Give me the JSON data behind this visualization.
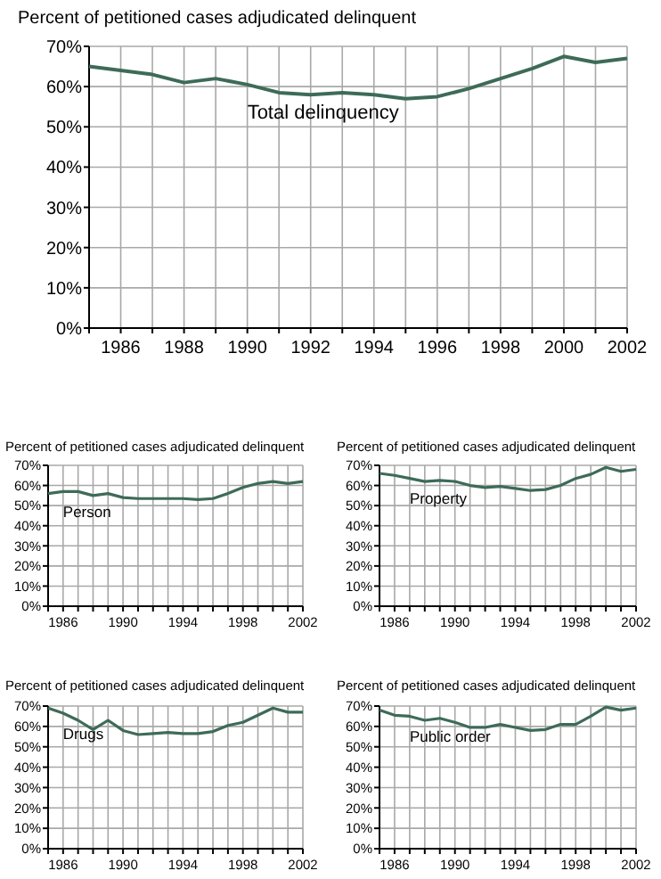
{
  "chart_data": [
    {
      "type": "line",
      "title": "Percent of petitioned cases adjudicated delinquent",
      "x": [
        1985,
        1986,
        1987,
        1988,
        1989,
        1990,
        1991,
        1992,
        1993,
        1994,
        1995,
        1996,
        1997,
        1998,
        1999,
        2000,
        2001,
        2002
      ],
      "series": [
        {
          "name": "Total delinquency",
          "color": "#3d6b58",
          "values": [
            65,
            64,
            63,
            61,
            62,
            60.5,
            58.5,
            58,
            58.5,
            58,
            57,
            57.5,
            59.5,
            62,
            64.5,
            67.5,
            66,
            67
          ]
        }
      ],
      "xlim": [
        1985,
        2002
      ],
      "xticks": [
        {
          "value": 1985,
          "label": null
        },
        1986,
        {
          "value": 1987,
          "label": null
        },
        1988,
        {
          "value": 1989,
          "label": null
        },
        1990,
        {
          "value": 1991,
          "label": null
        },
        1992,
        {
          "value": 1993,
          "label": null
        },
        1994,
        {
          "value": 1995,
          "label": null
        },
        1996,
        {
          "value": 1997,
          "label": null
        },
        1998,
        {
          "value": 1999,
          "label": null
        },
        2000,
        {
          "value": 2001,
          "label": null
        },
        2002
      ],
      "ylim": [
        0,
        70
      ],
      "yticks": [
        {
          "value": 0,
          "label": "0%"
        },
        {
          "value": 10,
          "label": "10%"
        },
        {
          "value": 20,
          "label": "20%"
        },
        {
          "value": 30,
          "label": "30%"
        },
        {
          "value": 40,
          "label": "40%"
        },
        {
          "value": 50,
          "label": "50%"
        },
        {
          "value": 60,
          "label": "60%"
        },
        {
          "value": 70,
          "label": "70%"
        }
      ],
      "grid": true
    },
    {
      "type": "line",
      "title": "Percent of petitioned cases adjudicated delinquent",
      "x": [
        1985,
        1986,
        1987,
        1988,
        1989,
        1990,
        1991,
        1992,
        1993,
        1994,
        1995,
        1996,
        1997,
        1998,
        1999,
        2000,
        2001,
        2002
      ],
      "series": [
        {
          "name": "Person",
          "color": "#3d6b58",
          "values": [
            56,
            57,
            57,
            55,
            56,
            54,
            53.5,
            53.5,
            53.5,
            53.5,
            53,
            53.5,
            56,
            59,
            61,
            62,
            61,
            62
          ]
        }
      ],
      "xlim": [
        1985,
        2002
      ],
      "xticks": [
        {
          "value": 1985,
          "label": null
        },
        1986,
        {
          "value": 1987,
          "label": null
        },
        {
          "value": 1988,
          "label": null
        },
        {
          "value": 1989,
          "label": null
        },
        1990,
        {
          "value": 1991,
          "label": null
        },
        {
          "value": 1992,
          "label": null
        },
        {
          "value": 1993,
          "label": null
        },
        1994,
        {
          "value": 1995,
          "label": null
        },
        {
          "value": 1996,
          "label": null
        },
        {
          "value": 1997,
          "label": null
        },
        1998,
        {
          "value": 1999,
          "label": null
        },
        {
          "value": 2000,
          "label": null
        },
        {
          "value": 2001,
          "label": null
        },
        2002
      ],
      "ylim": [
        0,
        70
      ],
      "yticks": [
        {
          "value": 0,
          "label": "0%"
        },
        {
          "value": 10,
          "label": "10%"
        },
        {
          "value": 20,
          "label": "20%"
        },
        {
          "value": 30,
          "label": "30%"
        },
        {
          "value": 40,
          "label": "40%"
        },
        {
          "value": 50,
          "label": "50%"
        },
        {
          "value": 60,
          "label": "60%"
        },
        {
          "value": 70,
          "label": "70%"
        }
      ],
      "grid": true
    },
    {
      "type": "line",
      "title": "Percent of petitioned cases adjudicated delinquent",
      "x": [
        1985,
        1986,
        1987,
        1988,
        1989,
        1990,
        1991,
        1992,
        1993,
        1994,
        1995,
        1996,
        1997,
        1998,
        1999,
        2000,
        2001,
        2002
      ],
      "series": [
        {
          "name": "Property",
          "color": "#3d6b58",
          "values": [
            66,
            65,
            63.5,
            62,
            62.5,
            62,
            60,
            59,
            59.5,
            58.5,
            57.5,
            58,
            60,
            63.5,
            65.5,
            69,
            67,
            68
          ]
        }
      ],
      "xlim": [
        1985,
        2002
      ],
      "xticks": [
        {
          "value": 1985,
          "label": null
        },
        1986,
        {
          "value": 1987,
          "label": null
        },
        {
          "value": 1988,
          "label": null
        },
        {
          "value": 1989,
          "label": null
        },
        1990,
        {
          "value": 1991,
          "label": null
        },
        {
          "value": 1992,
          "label": null
        },
        {
          "value": 1993,
          "label": null
        },
        1994,
        {
          "value": 1995,
          "label": null
        },
        {
          "value": 1996,
          "label": null
        },
        {
          "value": 1997,
          "label": null
        },
        1998,
        {
          "value": 1999,
          "label": null
        },
        {
          "value": 2000,
          "label": null
        },
        {
          "value": 2001,
          "label": null
        },
        2002
      ],
      "ylim": [
        0,
        70
      ],
      "yticks": [
        {
          "value": 0,
          "label": "0%"
        },
        {
          "value": 10,
          "label": "10%"
        },
        {
          "value": 20,
          "label": "20%"
        },
        {
          "value": 30,
          "label": "30%"
        },
        {
          "value": 40,
          "label": "40%"
        },
        {
          "value": 50,
          "label": "50%"
        },
        {
          "value": 60,
          "label": "60%"
        },
        {
          "value": 70,
          "label": "70%"
        }
      ],
      "grid": true
    },
    {
      "type": "line",
      "title": "Percent of petitioned cases adjudicated delinquent",
      "x": [
        1985,
        1986,
        1987,
        1988,
        1989,
        1990,
        1991,
        1992,
        1993,
        1994,
        1995,
        1996,
        1997,
        1998,
        1999,
        2000,
        2001,
        2002
      ],
      "series": [
        {
          "name": "Drugs",
          "color": "#3d6b58",
          "values": [
            69,
            66.5,
            63,
            58.5,
            63,
            58,
            56,
            56.5,
            57,
            56.5,
            56.5,
            57.5,
            60.5,
            62,
            65.5,
            69,
            67,
            67
          ]
        }
      ],
      "xlim": [
        1985,
        2002
      ],
      "xticks": [
        {
          "value": 1985,
          "label": null
        },
        1986,
        {
          "value": 1987,
          "label": null
        },
        {
          "value": 1988,
          "label": null
        },
        {
          "value": 1989,
          "label": null
        },
        1990,
        {
          "value": 1991,
          "label": null
        },
        {
          "value": 1992,
          "label": null
        },
        {
          "value": 1993,
          "label": null
        },
        1994,
        {
          "value": 1995,
          "label": null
        },
        {
          "value": 1996,
          "label": null
        },
        {
          "value": 1997,
          "label": null
        },
        1998,
        {
          "value": 1999,
          "label": null
        },
        {
          "value": 2000,
          "label": null
        },
        {
          "value": 2001,
          "label": null
        },
        2002
      ],
      "ylim": [
        0,
        70
      ],
      "yticks": [
        {
          "value": 0,
          "label": "0%"
        },
        {
          "value": 10,
          "label": "10%"
        },
        {
          "value": 20,
          "label": "20%"
        },
        {
          "value": 30,
          "label": "30%"
        },
        {
          "value": 40,
          "label": "40%"
        },
        {
          "value": 50,
          "label": "50%"
        },
        {
          "value": 60,
          "label": "60%"
        },
        {
          "value": 70,
          "label": "70%"
        }
      ],
      "grid": true
    },
    {
      "type": "line",
      "title": "Percent of petitioned cases adjudicated delinquent",
      "x": [
        1985,
        1986,
        1987,
        1988,
        1989,
        1990,
        1991,
        1992,
        1993,
        1994,
        1995,
        1996,
        1997,
        1998,
        1999,
        2000,
        2001,
        2002
      ],
      "series": [
        {
          "name": "Public order",
          "color": "#3d6b58",
          "values": [
            68,
            65.5,
            65,
            63,
            64,
            62,
            59.5,
            59.5,
            61,
            59.5,
            58,
            58.5,
            61,
            61,
            65,
            69.5,
            68,
            69
          ]
        }
      ],
      "xlim": [
        1985,
        2002
      ],
      "xticks": [
        {
          "value": 1985,
          "label": null
        },
        1986,
        {
          "value": 1987,
          "label": null
        },
        {
          "value": 1988,
          "label": null
        },
        {
          "value": 1989,
          "label": null
        },
        1990,
        {
          "value": 1991,
          "label": null
        },
        {
          "value": 1992,
          "label": null
        },
        {
          "value": 1993,
          "label": null
        },
        1994,
        {
          "value": 1995,
          "label": null
        },
        {
          "value": 1996,
          "label": null
        },
        {
          "value": 1997,
          "label": null
        },
        1998,
        {
          "value": 1999,
          "label": null
        },
        {
          "value": 2000,
          "label": null
        },
        {
          "value": 2001,
          "label": null
        },
        2002
      ],
      "ylim": [
        0,
        70
      ],
      "yticks": [
        {
          "value": 0,
          "label": "0%"
        },
        {
          "value": 10,
          "label": "10%"
        },
        {
          "value": 20,
          "label": "20%"
        },
        {
          "value": 30,
          "label": "30%"
        },
        {
          "value": 40,
          "label": "40%"
        },
        {
          "value": 50,
          "label": "50%"
        },
        {
          "value": 60,
          "label": "60%"
        },
        {
          "value": 70,
          "label": "70%"
        }
      ],
      "grid": true
    }
  ]
}
